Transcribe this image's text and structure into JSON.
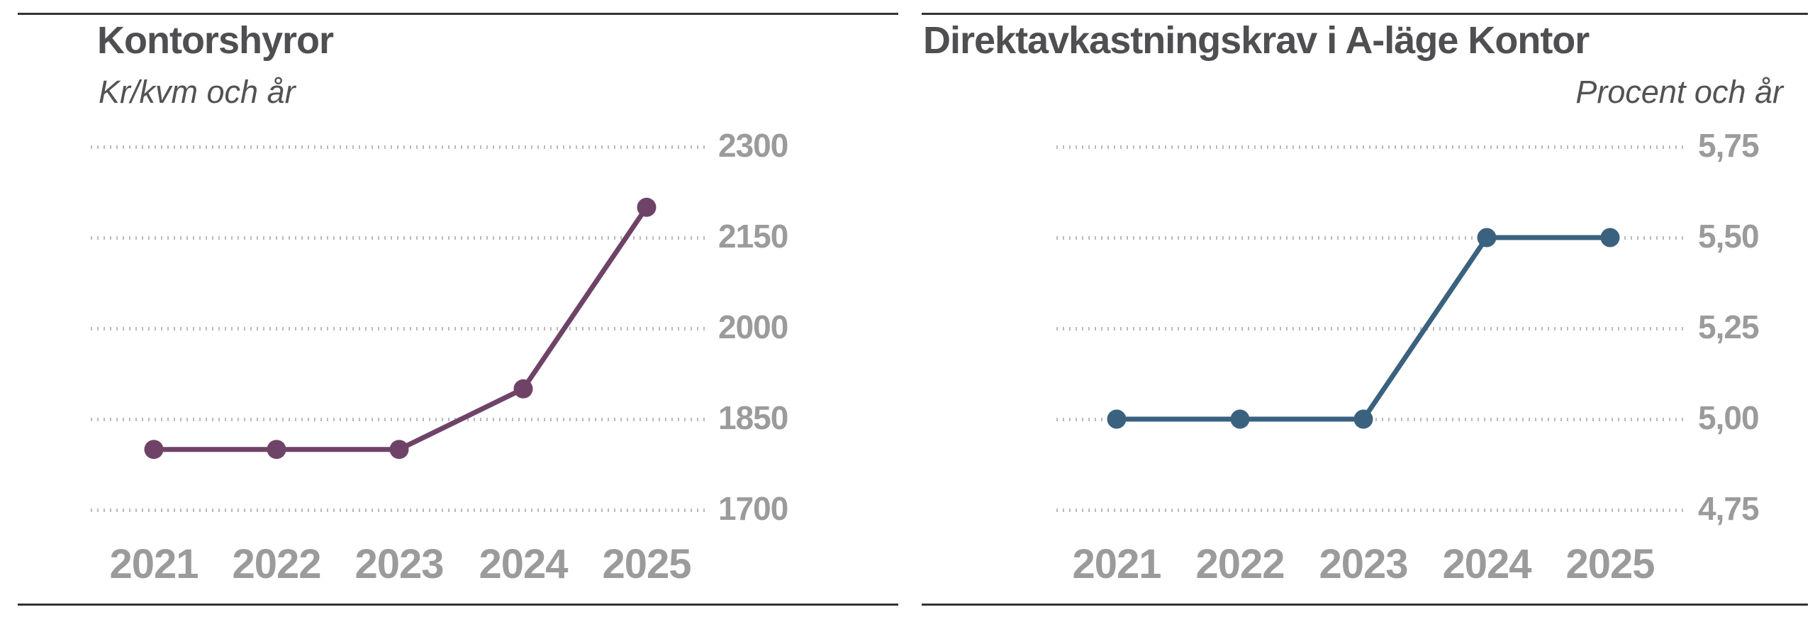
{
  "colors": {
    "title": "#4F4F51",
    "subtitle": "#535355",
    "axis_labels": "#9B9B9B",
    "gridline": "#BBBBBB",
    "rule": "#333333",
    "background": "#FFFFFF",
    "left_series": "#6F4367",
    "right_series": "#3A627F"
  },
  "chart_data": [
    {
      "type": "line",
      "title": "Kontorshyror",
      "subtitle": "Kr/kvm och år",
      "subtitle_align": "left",
      "xlabel": "",
      "ylabel": "Kr/kvm och år",
      "categories": [
        "2021",
        "2022",
        "2023",
        "2024",
        "2025"
      ],
      "values": [
        1800,
        1800,
        1800,
        1900,
        2200
      ],
      "ylim": [
        1700,
        2300
      ],
      "y_ticks": [
        {
          "value": 2300,
          "label": "2300"
        },
        {
          "value": 2150,
          "label": "2150"
        },
        {
          "value": 2000,
          "label": "2000"
        },
        {
          "value": 1850,
          "label": "1850"
        },
        {
          "value": 1700,
          "label": "1700"
        }
      ],
      "grid": "dotted-horizontal",
      "legend": "none",
      "line_color": "#6F4367",
      "marker": "circle"
    },
    {
      "type": "line",
      "title": "Direktavkastningskrav i A-läge Kontor",
      "subtitle": "Procent och år",
      "subtitle_align": "right",
      "xlabel": "",
      "ylabel": "Procent och år",
      "categories": [
        "2021",
        "2022",
        "2023",
        "2024",
        "2025"
      ],
      "values": [
        5.0,
        5.0,
        5.0,
        5.5,
        5.5
      ],
      "ylim": [
        4.75,
        5.75
      ],
      "y_ticks": [
        {
          "value": 5.75,
          "label": "5,75"
        },
        {
          "value": 5.5,
          "label": "5,50"
        },
        {
          "value": 5.25,
          "label": "5,25"
        },
        {
          "value": 5.0,
          "label": "5,00"
        },
        {
          "value": 4.75,
          "label": "4,75"
        }
      ],
      "grid": "dotted-horizontal",
      "legend": "none",
      "line_color": "#3A627F",
      "marker": "circle"
    }
  ]
}
